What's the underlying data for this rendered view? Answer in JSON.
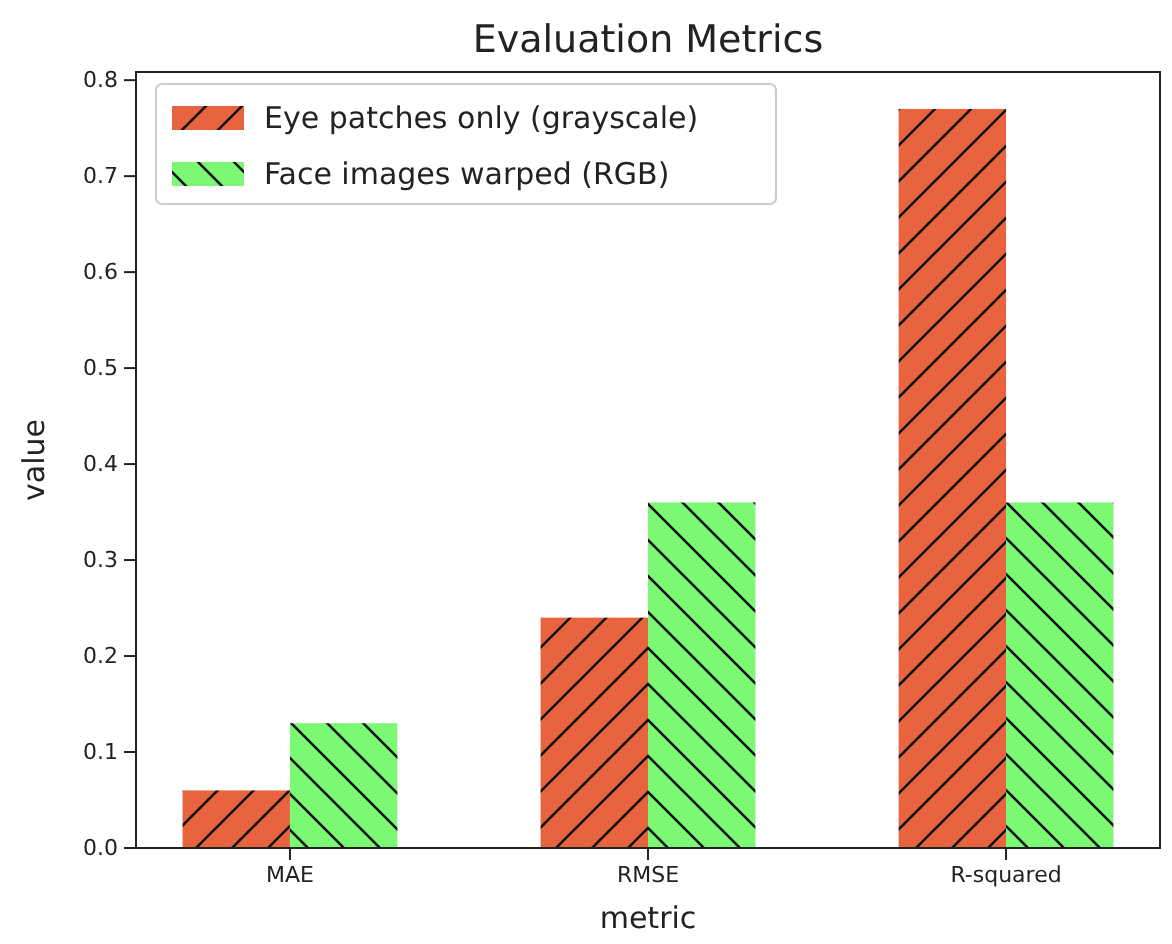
{
  "chart_data": {
    "type": "bar",
    "title": "Evaluation Metrics",
    "xlabel": "metric",
    "ylabel": "value",
    "categories": [
      "MAE",
      "RMSE",
      "R-squared"
    ],
    "series": [
      {
        "name": "Eye patches only (grayscale)",
        "color": "#e8643f",
        "values": [
          0.06,
          0.24,
          0.77
        ]
      },
      {
        "name": "Face images warped (RGB)",
        "color": "#7bf975",
        "values": [
          0.13,
          0.36,
          0.36
        ]
      }
    ],
    "ylim": [
      0,
      0.8085
    ],
    "yticks": [
      {
        "value": 0,
        "label": "0.0"
      },
      {
        "value": 0.1,
        "label": "0.1"
      },
      {
        "value": 0.2,
        "label": "0.2"
      },
      {
        "value": 0.3,
        "label": "0.3"
      },
      {
        "value": 0.4,
        "label": "0.4"
      },
      {
        "value": 0.5,
        "label": "0.5"
      },
      {
        "value": 0.6,
        "label": "0.6"
      },
      {
        "value": 0.7,
        "label": "0.7"
      },
      {
        "value": 0.8,
        "label": "0.8"
      }
    ],
    "grid": false,
    "legend": "top left"
  }
}
